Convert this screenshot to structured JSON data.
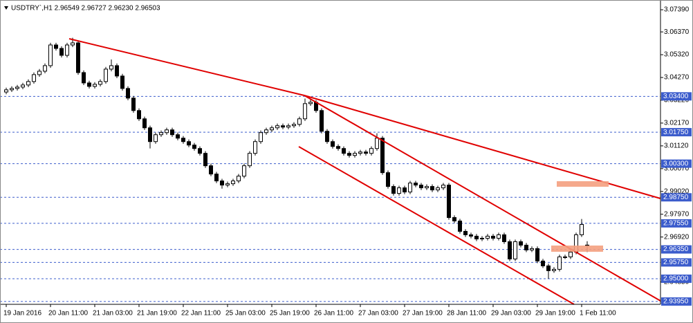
{
  "chart_data": {
    "type": "candlestick",
    "header": "USDTRY`,H1 2.96549 2.96727 2.96230 2.96503",
    "up_color": "#ffffff",
    "down_color": "#000000",
    "level_color": "#3b5ccc",
    "categories": [
      "19 Jan 2016",
      null,
      null,
      null,
      null,
      null,
      null,
      null,
      "20 Jan 11:00",
      null,
      null,
      null,
      null,
      null,
      null,
      null,
      "21 Jan 03:00",
      null,
      null,
      null,
      null,
      null,
      null,
      null,
      "21 Jan 19:00",
      null,
      null,
      null,
      null,
      null,
      null,
      null,
      "22 Jan 11:00",
      null,
      null,
      null,
      null,
      null,
      null,
      null,
      "25 Jan 03:00",
      null,
      null,
      null,
      null,
      null,
      null,
      null,
      "25 Jan 19:00",
      null,
      null,
      null,
      null,
      null,
      null,
      null,
      "26 Jan 11:00",
      null,
      null,
      null,
      null,
      null,
      null,
      null,
      "27 Jan 03:00",
      null,
      null,
      null,
      null,
      null,
      null,
      null,
      "27 Jan 19:00",
      null,
      null,
      null,
      null,
      null,
      null,
      null,
      "28 Jan 11:00",
      null,
      null,
      null,
      null,
      null,
      null,
      null,
      "29 Jan 03:00",
      null,
      null,
      null,
      null,
      null,
      null,
      null,
      "29 Jan 19:00",
      null,
      null,
      null,
      null,
      null,
      null,
      null,
      "1 Feb 11:00",
      null
    ],
    "open": [
      3.036,
      3.03701,
      3.03765,
      3.03828,
      3.03924,
      3.04083,
      3.04401,
      3.0456,
      3.04814,
      3.05768,
      3.05609,
      3.05291,
      3.05768,
      3.05864,
      3.04496,
      3.04019,
      3.0386,
      3.03956,
      3.04083,
      3.04655,
      3.04814,
      3.04337,
      3.03765,
      3.0332,
      3.02747,
      3.02366,
      3.01952,
      3.01316,
      3.01634,
      3.0173,
      3.01857,
      3.01634,
      3.01475,
      3.01316,
      3.01157,
      3.00998,
      3.00776,
      3.00203,
      2.99822,
      2.99504,
      2.99313,
      2.99376,
      2.99504,
      2.99726,
      3.00203,
      3.00776,
      3.01316,
      3.0173,
      3.01857,
      3.01952,
      3.02048,
      3.01984,
      3.02048,
      3.02111,
      3.02366,
      3.03065,
      3.03129,
      3.02747,
      3.01793,
      3.01316,
      3.01094,
      3.00998,
      3.00776,
      3.0068,
      3.00776,
      3.00839,
      3.00776,
      3.00998,
      3.01475,
      2.99885,
      2.99249,
      2.98931,
      2.99186,
      2.98995,
      2.99408,
      2.99313,
      2.99186,
      2.99249,
      2.9909,
      2.99186,
      2.99313,
      2.97818,
      2.97659,
      2.97182,
      2.97023,
      2.9696,
      2.96832,
      2.96864,
      2.9696,
      2.96864,
      2.97023,
      2.96705,
      2.9591,
      2.96705,
      2.96546,
      2.96324,
      2.96387,
      2.95815,
      2.95592,
      2.9537,
      2.95433,
      2.96006,
      2.96006,
      2.96228,
      2.97023,
      2.96549
    ],
    "high": [
      3.03801,
      3.03865,
      3.03928,
      3.04024,
      3.04183,
      3.04501,
      3.0466,
      3.04914,
      3.05868,
      3.05868,
      3.05709,
      3.05868,
      3.061,
      3.05964,
      3.04596,
      3.04119,
      3.04056,
      3.04183,
      3.04755,
      3.051,
      3.04914,
      3.04437,
      3.03865,
      3.0342,
      3.02847,
      3.02466,
      3.02052,
      3.01734,
      3.0183,
      3.01957,
      3.01957,
      3.01734,
      3.01575,
      3.01416,
      3.01257,
      3.01098,
      3.00876,
      3.00303,
      2.99922,
      2.99604,
      2.99476,
      2.99604,
      2.99826,
      3.00303,
      3.00876,
      3.01416,
      3.0183,
      3.01957,
      3.02052,
      3.02148,
      3.02148,
      3.02148,
      3.02211,
      3.02466,
      3.033,
      3.033,
      3.03229,
      3.02847,
      3.01893,
      3.01416,
      3.01194,
      3.01098,
      3.00876,
      3.00876,
      3.00939,
      3.00939,
      3.01098,
      3.017,
      3.01575,
      2.99985,
      2.99349,
      2.99286,
      2.99286,
      2.99508,
      2.99508,
      2.99413,
      2.99349,
      2.99349,
      2.99286,
      2.99413,
      2.99413,
      2.97918,
      2.97759,
      2.97282,
      2.97123,
      2.9706,
      2.96964,
      2.9706,
      2.9706,
      2.97123,
      2.97123,
      2.96805,
      2.96805,
      2.96805,
      2.96646,
      2.96487,
      2.96487,
      2.95915,
      2.95692,
      2.95533,
      2.96106,
      2.96106,
      2.96328,
      2.97123,
      2.9775,
      2.96727
    ],
    "low": [
      3.035,
      3.03601,
      3.03665,
      3.03728,
      3.03824,
      3.03983,
      3.04301,
      3.0446,
      3.04714,
      3.05509,
      3.05191,
      3.05191,
      3.05668,
      3.04396,
      3.03919,
      3.0376,
      3.0376,
      3.03856,
      3.03983,
      3.04555,
      3.04237,
      3.03665,
      3.0322,
      3.02647,
      3.02266,
      3.01852,
      3.01,
      3.01216,
      3.01534,
      3.0163,
      3.01534,
      3.01375,
      3.01216,
      3.01057,
      3.00898,
      3.00676,
      3.00103,
      2.99722,
      2.99404,
      2.9915,
      2.99213,
      2.99276,
      2.99404,
      2.99626,
      3.00103,
      3.00676,
      3.01216,
      3.0163,
      3.01757,
      3.01852,
      3.01884,
      3.01884,
      3.01948,
      3.02011,
      3.02266,
      3.02965,
      3.02647,
      3.01693,
      3.01216,
      3.00994,
      3.00898,
      3.00676,
      3.0058,
      3.0058,
      3.00676,
      3.00676,
      3.00676,
      3.00898,
      2.99785,
      2.99149,
      2.98831,
      2.98831,
      2.98895,
      2.98895,
      2.99213,
      2.99086,
      2.99086,
      2.9899,
      2.9899,
      2.99086,
      2.97718,
      2.97559,
      2.97082,
      2.96923,
      2.9686,
      2.96732,
      2.96732,
      2.96764,
      2.96764,
      2.96764,
      2.96605,
      2.9581,
      2.9581,
      2.96446,
      2.96224,
      2.96224,
      2.95715,
      2.95492,
      2.95,
      2.9527,
      2.95333,
      2.95906,
      2.95906,
      2.96128,
      2.96923,
      2.9623
    ],
    "close": [
      3.03701,
      3.03765,
      3.03828,
      3.03924,
      3.04083,
      3.04401,
      3.0456,
      3.04814,
      3.05768,
      3.05609,
      3.05291,
      3.05768,
      3.05864,
      3.04496,
      3.04019,
      3.0386,
      3.03956,
      3.04083,
      3.04655,
      3.04814,
      3.04337,
      3.03765,
      3.0332,
      3.02747,
      3.02366,
      3.01952,
      3.01316,
      3.01634,
      3.0173,
      3.01857,
      3.01634,
      3.01475,
      3.01316,
      3.01157,
      3.00998,
      3.00776,
      3.00203,
      2.99822,
      2.99504,
      2.99313,
      2.99376,
      2.99504,
      2.99726,
      3.00203,
      3.00776,
      3.01316,
      3.0173,
      3.01857,
      3.01952,
      3.02048,
      3.01984,
      3.02048,
      3.02111,
      3.02366,
      3.03065,
      3.03129,
      3.02747,
      3.01793,
      3.01316,
      3.01094,
      3.00998,
      3.00776,
      3.0068,
      3.00776,
      3.00839,
      3.00776,
      3.00998,
      3.01475,
      2.99885,
      2.99249,
      2.98931,
      2.99186,
      2.98995,
      2.99408,
      2.99313,
      2.99186,
      2.99249,
      2.9909,
      2.99186,
      2.99313,
      2.97818,
      2.97659,
      2.97182,
      2.97023,
      2.9696,
      2.96832,
      2.96864,
      2.9696,
      2.96864,
      2.97023,
      2.96705,
      2.9591,
      2.96705,
      2.96546,
      2.96324,
      2.96387,
      2.95815,
      2.95592,
      2.9537,
      2.95433,
      2.96006,
      2.96006,
      2.96228,
      2.97023,
      2.975,
      2.96503
    ],
    "ylim": [
      2.9382,
      3.0768
    ],
    "yticks": [
      {
        "value": 3.0739,
        "label": "3.07390"
      },
      {
        "value": 3.0637,
        "label": "3.06370"
      },
      {
        "value": 3.0532,
        "label": "3.05320"
      },
      {
        "value": 3.0427,
        "label": "3.04270"
      },
      {
        "value": 3.0322,
        "label": "3.03220"
      },
      {
        "value": 3.0217,
        "label": "3.02170"
      },
      {
        "value": 3.0112,
        "label": "3.01120"
      },
      {
        "value": 3.0007,
        "label": "3.00070"
      },
      {
        "value": 2.9902,
        "label": "2.99020"
      },
      {
        "value": 2.9797,
        "label": "2.97970"
      },
      {
        "value": 2.9692,
        "label": "2.96920"
      },
      {
        "value": 2.9485,
        "label": "2.94850"
      }
    ],
    "levels": [
      {
        "value": 3.034,
        "label": "3.03400"
      },
      {
        "value": 3.0175,
        "label": "3.01750"
      },
      {
        "value": 3.003,
        "label": "3.00300"
      },
      {
        "value": 2.9875,
        "label": "2.98750"
      },
      {
        "value": 2.9755,
        "label": "2.97550"
      },
      {
        "value": 2.9635,
        "label": "2.96350"
      },
      {
        "value": 2.9575,
        "label": "2.95750"
      },
      {
        "value": 2.95,
        "label": "2.95000"
      },
      {
        "value": 2.9395,
        "label": "2.93950"
      }
    ]
  }
}
